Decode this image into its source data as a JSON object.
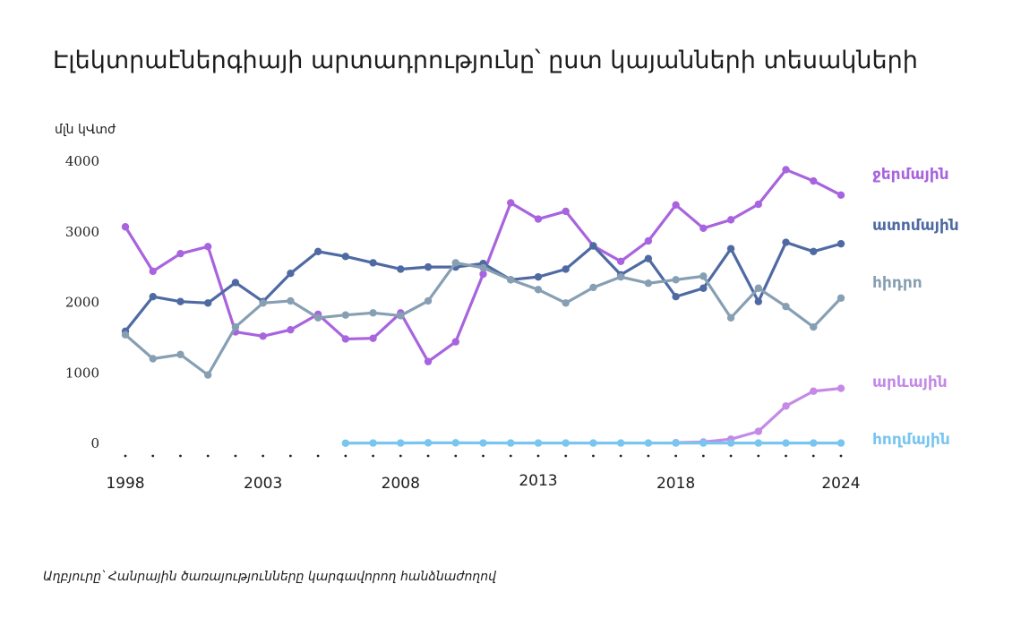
{
  "chart_data": {
    "type": "line",
    "title": "Էլեկտրաէներգիայի արտադրությունը՝ ըստ կայանների տեսակների",
    "ylabel": "մլն կՎտժ",
    "source": "Աղբյուրը՝ Հանրային ծառայությունները կարգավորող հանձնաժողով",
    "ylim": [
      0,
      4000
    ],
    "yticks": [
      "0",
      "1000",
      "2000",
      "3000",
      "4000"
    ],
    "x": [
      1998,
      1999,
      2000,
      2001,
      2002,
      2003,
      2004,
      2005,
      2006,
      2007,
      2008,
      2009,
      2010,
      2011,
      2012,
      2013,
      2014,
      2015,
      2016,
      2017,
      2018,
      2019,
      2020,
      2021,
      2022,
      2023,
      2024
    ],
    "xtick_labels": [
      {
        "x": 1998,
        "label": "1998"
      },
      {
        "x": 2003,
        "label": "2003"
      },
      {
        "x": 2008,
        "label": "2008"
      },
      {
        "x": 2013,
        "label": "2013"
      },
      {
        "x": 2018,
        "label": "2018"
      },
      {
        "x": 2024,
        "label": "2024"
      }
    ],
    "grid": false,
    "legend": "inline-right",
    "series": [
      {
        "name": "ջերմային",
        "color": "#a864de",
        "values": [
          3070,
          2440,
          2690,
          2790,
          1580,
          1520,
          1610,
          1830,
          1480,
          1490,
          1850,
          1160,
          1440,
          2400,
          3410,
          3180,
          3290,
          2800,
          2580,
          2870,
          3380,
          3050,
          3170,
          3390,
          3880,
          3720,
          3520
        ]
      },
      {
        "name": "ատոմային",
        "color": "#4f6aa3",
        "values": [
          1590,
          2080,
          2010,
          1990,
          2280,
          2010,
          2410,
          2720,
          2650,
          2560,
          2470,
          2500,
          2500,
          2550,
          2320,
          2360,
          2470,
          2800,
          2390,
          2620,
          2080,
          2200,
          2760,
          2010,
          2850,
          2720,
          2830
        ]
      },
      {
        "name": "հիդրո",
        "color": "#879fb3",
        "values": [
          1540,
          1200,
          1260,
          970,
          1650,
          1990,
          2020,
          1780,
          1820,
          1850,
          1810,
          2020,
          2560,
          2490,
          2320,
          2180,
          1990,
          2210,
          2360,
          2270,
          2320,
          2370,
          1780,
          2200,
          1940,
          1650,
          2060
        ]
      },
      {
        "name": "արևային",
        "color": "#c48ae6",
        "values": [
          null,
          null,
          null,
          null,
          null,
          null,
          null,
          null,
          null,
          null,
          null,
          null,
          null,
          null,
          null,
          null,
          null,
          null,
          null,
          null,
          10,
          20,
          60,
          170,
          530,
          740,
          780
        ]
      },
      {
        "name": "հողմային",
        "color": "#78c5f0",
        "values": [
          null,
          null,
          null,
          null,
          null,
          null,
          null,
          null,
          3,
          5,
          5,
          8,
          8,
          6,
          5,
          5,
          5,
          5,
          5,
          5,
          5,
          5,
          5,
          5,
          5,
          5,
          5
        ]
      }
    ]
  }
}
